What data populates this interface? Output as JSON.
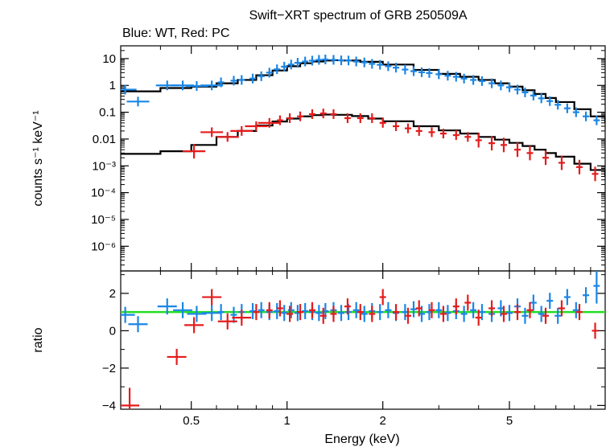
{
  "chart_data": [
    {
      "type": "scatter",
      "title": "Swift−XRT spectrum of GRB 250509A",
      "subtitle": "Blue: WT, Red: PC",
      "ylabel": "counts s⁻¹ keV⁻¹",
      "xscale": "log",
      "yscale": "log",
      "xlim": [
        0.3,
        10
      ],
      "ylim": [
        1.2e-07,
        30
      ],
      "y_ticks": [
        {
          "value": 10,
          "label": "10"
        },
        {
          "value": 1,
          "label": "1"
        },
        {
          "value": 0.1,
          "label": "0.1"
        },
        {
          "value": 0.01,
          "label": "0.01"
        },
        {
          "value": 0.001,
          "label": "10⁻³"
        },
        {
          "value": 0.0001,
          "label": "10⁻⁴"
        },
        {
          "value": 1e-05,
          "label": "10⁻⁵"
        },
        {
          "value": 1e-06,
          "label": "10⁻⁶"
        }
      ],
      "series": [
        {
          "color": "#1a86e6",
          "points": [
            [
              0.31,
              0.7
            ],
            [
              0.34,
              0.25
            ],
            [
              0.42,
              1.0
            ],
            [
              0.47,
              1.0
            ],
            [
              0.52,
              0.95
            ],
            [
              0.58,
              1.0
            ],
            [
              0.62,
              1.3
            ],
            [
              0.68,
              1.5
            ],
            [
              0.72,
              1.6
            ],
            [
              0.78,
              1.8
            ],
            [
              0.83,
              2.2
            ],
            [
              0.88,
              3.0
            ],
            [
              0.93,
              4.0
            ],
            [
              0.98,
              5.0
            ],
            [
              1.03,
              6.0
            ],
            [
              1.08,
              7.0
            ],
            [
              1.14,
              7.8
            ],
            [
              1.2,
              8.4
            ],
            [
              1.26,
              9.0
            ],
            [
              1.32,
              9.3
            ],
            [
              1.4,
              9.0
            ],
            [
              1.48,
              8.6
            ],
            [
              1.56,
              8.5
            ],
            [
              1.65,
              7.8
            ],
            [
              1.75,
              7.2
            ],
            [
              1.85,
              6.4
            ],
            [
              1.96,
              5.9
            ],
            [
              2.08,
              5.2
            ],
            [
              2.2,
              4.6
            ],
            [
              2.35,
              3.9
            ],
            [
              2.5,
              3.4
            ],
            [
              2.65,
              3.1
            ],
            [
              2.8,
              2.9
            ],
            [
              3.0,
              2.6
            ],
            [
              3.2,
              2.3
            ],
            [
              3.4,
              2.1
            ],
            [
              3.6,
              1.8
            ],
            [
              3.85,
              1.6
            ],
            [
              4.1,
              1.45
            ],
            [
              4.4,
              1.2
            ],
            [
              4.7,
              1.0
            ],
            [
              5.0,
              0.85
            ],
            [
              5.3,
              0.7
            ],
            [
              5.6,
              0.55
            ],
            [
              5.95,
              0.42
            ],
            [
              6.3,
              0.33
            ],
            [
              6.7,
              0.26
            ],
            [
              7.1,
              0.19
            ],
            [
              7.6,
              0.14
            ],
            [
              8.1,
              0.1
            ],
            [
              8.7,
              0.07
            ],
            [
              9.4,
              0.05
            ]
          ],
          "ratio": [
            [
              0.31,
              0.85
            ],
            [
              0.34,
              0.35
            ],
            [
              0.42,
              1.3
            ],
            [
              0.47,
              1.1
            ],
            [
              0.52,
              0.9
            ],
            [
              0.58,
              0.95
            ],
            [
              0.62,
              1.0
            ],
            [
              0.68,
              0.85
            ],
            [
              0.72,
              1.0
            ],
            [
              0.78,
              1.05
            ],
            [
              0.83,
              1.1
            ],
            [
              0.88,
              1.0
            ],
            [
              0.93,
              1.05
            ],
            [
              0.98,
              0.95
            ],
            [
              1.03,
              1.1
            ],
            [
              1.08,
              0.95
            ],
            [
              1.14,
              1.05
            ],
            [
              1.2,
              1.0
            ],
            [
              1.26,
              0.95
            ],
            [
              1.32,
              1.05
            ],
            [
              1.4,
              1.1
            ],
            [
              1.48,
              0.95
            ],
            [
              1.56,
              1.0
            ],
            [
              1.65,
              1.1
            ],
            [
              1.75,
              0.9
            ],
            [
              1.85,
              1.05
            ],
            [
              1.96,
              1.0
            ],
            [
              2.08,
              1.1
            ],
            [
              2.2,
              0.95
            ],
            [
              2.35,
              1.0
            ],
            [
              2.5,
              1.15
            ],
            [
              2.65,
              0.9
            ],
            [
              2.8,
              1.0
            ],
            [
              3.0,
              1.1
            ],
            [
              3.2,
              0.95
            ],
            [
              3.4,
              1.05
            ],
            [
              3.6,
              0.9
            ],
            [
              3.85,
              1.1
            ],
            [
              4.1,
              1.0
            ],
            [
              4.4,
              0.9
            ],
            [
              4.7,
              1.2
            ],
            [
              5.0,
              0.95
            ],
            [
              5.3,
              1.3
            ],
            [
              5.6,
              0.8
            ],
            [
              5.95,
              1.5
            ],
            [
              6.3,
              0.9
            ],
            [
              6.7,
              1.6
            ],
            [
              7.1,
              0.8
            ],
            [
              7.6,
              1.8
            ],
            [
              8.1,
              1.1
            ],
            [
              8.7,
              1.9
            ],
            [
              9.4,
              2.4
            ]
          ]
        },
        {
          "color": "#e51c1c",
          "points": [
            [
              0.51,
              0.0035
            ],
            [
              0.58,
              0.018
            ],
            [
              0.65,
              0.012
            ],
            [
              0.72,
              0.02
            ],
            [
              0.8,
              0.03
            ],
            [
              0.88,
              0.04
            ],
            [
              0.95,
              0.05
            ],
            [
              1.02,
              0.06
            ],
            [
              1.1,
              0.07
            ],
            [
              1.2,
              0.085
            ],
            [
              1.3,
              0.09
            ],
            [
              1.4,
              0.085
            ],
            [
              1.55,
              0.06
            ],
            [
              1.7,
              0.06
            ],
            [
              1.85,
              0.06
            ],
            [
              2.0,
              0.04
            ],
            [
              2.2,
              0.03
            ],
            [
              2.4,
              0.025
            ],
            [
              2.6,
              0.02
            ],
            [
              2.85,
              0.018
            ],
            [
              3.1,
              0.016
            ],
            [
              3.4,
              0.014
            ],
            [
              3.7,
              0.012
            ],
            [
              4.0,
              0.009
            ],
            [
              4.4,
              0.007
            ],
            [
              4.8,
              0.006
            ],
            [
              5.3,
              0.004
            ],
            [
              5.8,
              0.003
            ],
            [
              6.5,
              0.002
            ],
            [
              7.3,
              0.0013
            ],
            [
              8.3,
              0.0009
            ],
            [
              9.3,
              0.0005
            ]
          ],
          "ratio": [
            [
              0.32,
              -4.0
            ],
            [
              0.45,
              -1.4
            ],
            [
              0.51,
              0.3
            ],
            [
              0.58,
              1.8
            ],
            [
              0.65,
              0.5
            ],
            [
              0.72,
              0.7
            ],
            [
              0.8,
              1.0
            ],
            [
              0.88,
              1.1
            ],
            [
              0.95,
              1.2
            ],
            [
              1.02,
              0.9
            ],
            [
              1.1,
              1.0
            ],
            [
              1.2,
              1.1
            ],
            [
              1.3,
              0.8
            ],
            [
              1.4,
              0.9
            ],
            [
              1.55,
              1.3
            ],
            [
              1.7,
              1.0
            ],
            [
              1.85,
              0.9
            ],
            [
              2.0,
              1.8
            ],
            [
              2.2,
              1.0
            ],
            [
              2.4,
              0.8
            ],
            [
              2.6,
              1.2
            ],
            [
              2.85,
              1.1
            ],
            [
              3.1,
              0.9
            ],
            [
              3.4,
              1.3
            ],
            [
              3.7,
              1.5
            ],
            [
              4.0,
              0.7
            ],
            [
              4.4,
              1.2
            ],
            [
              4.8,
              0.9
            ],
            [
              5.3,
              1.0
            ],
            [
              5.8,
              1.1
            ],
            [
              6.5,
              0.8
            ],
            [
              7.3,
              1.2
            ],
            [
              8.3,
              1.0
            ],
            [
              9.3,
              0.0
            ]
          ]
        }
      ],
      "models": [
        {
          "color": "#000000",
          "points": [
            [
              0.3,
              0.6
            ],
            [
              0.4,
              0.8
            ],
            [
              0.5,
              0.9
            ],
            [
              0.6,
              1.2
            ],
            [
              0.7,
              1.6
            ],
            [
              0.8,
              2.4
            ],
            [
              0.9,
              3.6
            ],
            [
              1.0,
              5.2
            ],
            [
              1.1,
              6.7
            ],
            [
              1.2,
              7.8
            ],
            [
              1.3,
              8.5
            ],
            [
              1.4,
              8.7
            ],
            [
              1.5,
              8.5
            ],
            [
              1.7,
              7.6
            ],
            [
              2.0,
              6.0
            ],
            [
              2.5,
              3.8
            ],
            [
              3.0,
              2.7
            ],
            [
              3.5,
              2.1
            ],
            [
              4.0,
              1.6
            ],
            [
              4.5,
              1.2
            ],
            [
              5.0,
              0.9
            ],
            [
              5.5,
              0.66
            ],
            [
              6.0,
              0.48
            ],
            [
              6.5,
              0.34
            ],
            [
              7.0,
              0.24
            ],
            [
              8.0,
              0.13
            ],
            [
              9.0,
              0.07
            ],
            [
              10.0,
              0.04
            ]
          ]
        },
        {
          "color": "#000000",
          "points": [
            [
              0.3,
              0.0028
            ],
            [
              0.4,
              0.0035
            ],
            [
              0.5,
              0.006
            ],
            [
              0.6,
              0.012
            ],
            [
              0.7,
              0.02
            ],
            [
              0.8,
              0.032
            ],
            [
              0.9,
              0.045
            ],
            [
              1.0,
              0.058
            ],
            [
              1.1,
              0.07
            ],
            [
              1.2,
              0.078
            ],
            [
              1.3,
              0.082
            ],
            [
              1.4,
              0.08
            ],
            [
              1.6,
              0.072
            ],
            [
              1.8,
              0.058
            ],
            [
              2.0,
              0.046
            ],
            [
              2.5,
              0.03
            ],
            [
              3.0,
              0.021
            ],
            [
              3.5,
              0.016
            ],
            [
              4.0,
              0.012
            ],
            [
              4.5,
              0.0095
            ],
            [
              5.0,
              0.0072
            ],
            [
              5.5,
              0.0055
            ],
            [
              6.0,
              0.004
            ],
            [
              6.5,
              0.003
            ],
            [
              7.0,
              0.0022
            ],
            [
              8.0,
              0.0012
            ],
            [
              9.0,
              0.0007
            ],
            [
              10.0,
              0.0004
            ]
          ]
        }
      ]
    },
    {
      "type": "scatter",
      "xlabel": "Energy (keV)",
      "ylabel": "ratio",
      "xscale": "log",
      "xlim": [
        0.3,
        10
      ],
      "ylim": [
        -4.2,
        3.2
      ],
      "x_ticks": [
        {
          "value": 0.5,
          "label": "0.5"
        },
        {
          "value": 1,
          "label": "1"
        },
        {
          "value": 2,
          "label": "2"
        },
        {
          "value": 5,
          "label": "5"
        }
      ],
      "y_ticks": [
        {
          "value": 2,
          "label": "2"
        },
        {
          "value": 0,
          "label": "0"
        },
        {
          "value": -2,
          "label": "−2"
        },
        {
          "value": -4,
          "label": "−4"
        }
      ],
      "reference_line": {
        "y": 1,
        "color": "#22dd22"
      }
    }
  ]
}
